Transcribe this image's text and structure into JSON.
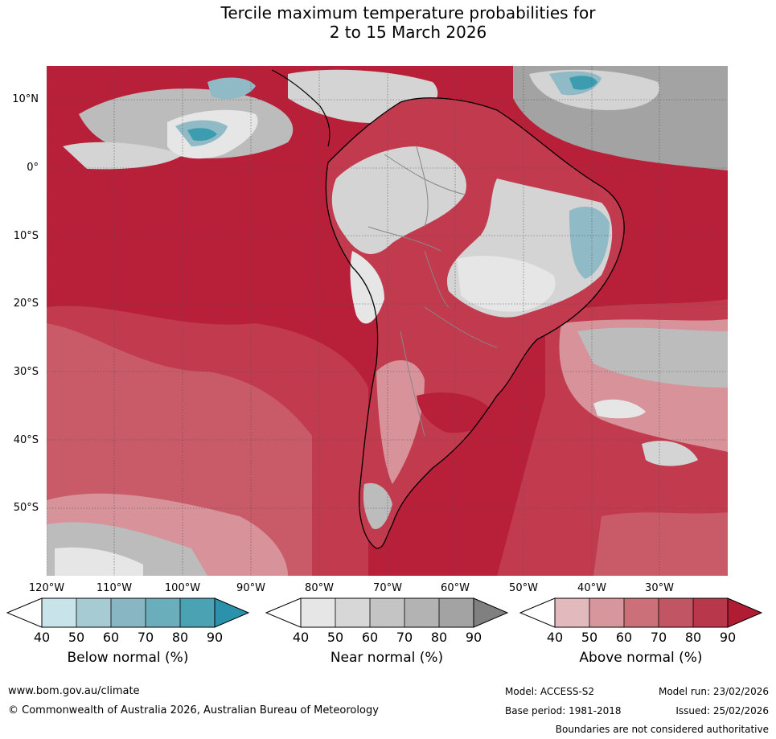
{
  "title_line1": "Tercile maximum temperature probabilities for",
  "title_line2": "2 to 15 March 2026",
  "map": {
    "lat_labels": [
      "10°N",
      "0°",
      "10°S",
      "20°S",
      "30°S",
      "40°S",
      "50°S"
    ],
    "lon_labels": [
      "120°W",
      "110°W",
      "100°W",
      "90°W",
      "80°W",
      "70°W",
      "60°W",
      "50°W",
      "40°W",
      "30°W"
    ],
    "colors": {
      "ocean_above": "#b81f38",
      "above_80": "#c23a4d",
      "above_70": "#c95a68",
      "above_60": "#d7929a",
      "above_50": "#e2b9bd",
      "near_50": "#e6e6e6",
      "near_60": "#d4d4d4",
      "near_70": "#bcbcbc",
      "near_80": "#a3a3a3",
      "below_60": "#8fbac6",
      "below_80": "#3b9daf"
    }
  },
  "colorbars": [
    {
      "title": "Below normal (%)",
      "ticks": [
        "40",
        "50",
        "60",
        "70",
        "80",
        "90"
      ],
      "colors": [
        "#c8e3ea",
        "#a6cbd3",
        "#89b6c3",
        "#6aaebb",
        "#4aa2b3",
        "#2a93ab"
      ]
    },
    {
      "title": "Near normal (%)",
      "ticks": [
        "40",
        "50",
        "60",
        "70",
        "80",
        "90"
      ],
      "colors": [
        "#e6e6e6",
        "#d7d7d7",
        "#c4c4c4",
        "#b3b3b3",
        "#a3a3a3",
        "#808080"
      ]
    },
    {
      "title": "Above normal (%)",
      "ticks": [
        "40",
        "50",
        "60",
        "70",
        "80",
        "90"
      ],
      "colors": [
        "#e2b9bd",
        "#d7959c",
        "#cb7079",
        "#c25564",
        "#b8374b",
        "#b01c34"
      ]
    }
  ],
  "footer": {
    "website": "www.bom.gov.au/climate",
    "copyright": "© Commonwealth of Australia 2026, Australian Bureau of Meteorology",
    "model": "Model: ACCESS-S2",
    "model_run": "Model run: 23/02/2026",
    "base_period": "Base period: 1981-2018",
    "issued": "Issued: 25/02/2026",
    "disclaimer": "Boundaries are not considered authoritative"
  }
}
